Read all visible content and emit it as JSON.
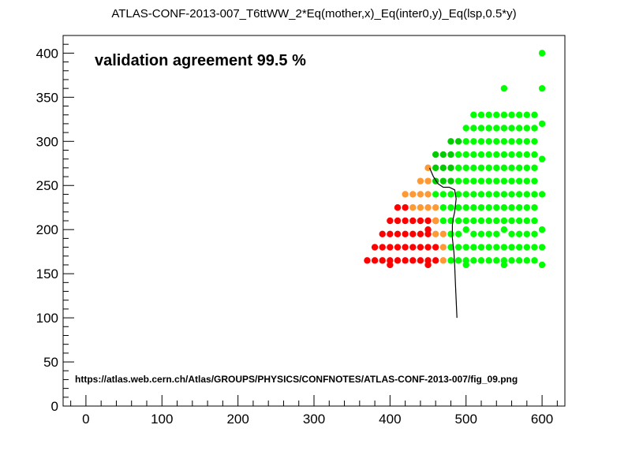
{
  "title": "ATLAS-CONF-2013-007_T6ttWW_2*Eq(mother,x)_Eq(inter0,y)_Eq(lsp,0.5*y)",
  "annotation": "validation agreement 99.5 %",
  "source_url": "https://atlas.web.cern.ch/Atlas/GROUPS/PHYSICS/CONFNOTES/ATLAS-CONF-2013-007/fig_09.png",
  "colors": {
    "excluded": "#ff0000",
    "disagree": "#ff9933",
    "allowed": "#00ff00",
    "allowed_dark": "#00cc00",
    "contour": "#000000"
  },
  "chart_data": {
    "type": "scatter",
    "title": "ATLAS-CONF-2013-007_T6ttWW_2*Eq(mother,x)_Eq(inter0,y)_Eq(lsp,0.5*y)",
    "xlabel": "",
    "ylabel": "",
    "xlim": [
      -30,
      630
    ],
    "ylim": [
      0,
      420
    ],
    "x_ticks": [
      0,
      100,
      200,
      300,
      400,
      500,
      600
    ],
    "y_ticks": [
      0,
      50,
      100,
      150,
      200,
      250,
      300,
      350,
      400
    ],
    "grid": false,
    "series": [
      {
        "color": "#ff0000",
        "points": [
          [
            370,
            165
          ],
          [
            380,
            165
          ],
          [
            390,
            165
          ],
          [
            400,
            165
          ],
          [
            410,
            165
          ],
          [
            420,
            165
          ],
          [
            430,
            165
          ],
          [
            440,
            165
          ],
          [
            450,
            165
          ],
          [
            460,
            165
          ],
          [
            400,
            160
          ],
          [
            450,
            160
          ],
          [
            380,
            180
          ],
          [
            390,
            180
          ],
          [
            400,
            180
          ],
          [
            410,
            180
          ],
          [
            420,
            180
          ],
          [
            430,
            180
          ],
          [
            440,
            180
          ],
          [
            450,
            180
          ],
          [
            460,
            180
          ],
          [
            390,
            195
          ],
          [
            400,
            195
          ],
          [
            410,
            195
          ],
          [
            420,
            195
          ],
          [
            430,
            195
          ],
          [
            440,
            195
          ],
          [
            450,
            195
          ],
          [
            400,
            210
          ],
          [
            410,
            210
          ],
          [
            420,
            210
          ],
          [
            430,
            210
          ],
          [
            440,
            210
          ],
          [
            450,
            210
          ],
          [
            460,
            210
          ],
          [
            410,
            225
          ],
          [
            420,
            225
          ],
          [
            450,
            200
          ]
        ]
      },
      {
        "color": "#ff9933",
        "points": [
          [
            470,
            165
          ],
          [
            470,
            180
          ],
          [
            460,
            195
          ],
          [
            470,
            195
          ],
          [
            430,
            225
          ],
          [
            440,
            225
          ],
          [
            450,
            225
          ],
          [
            460,
            225
          ],
          [
            420,
            240
          ],
          [
            430,
            240
          ],
          [
            440,
            240
          ],
          [
            450,
            240
          ],
          [
            440,
            255
          ],
          [
            450,
            255
          ],
          [
            450,
            270
          ],
          [
            460,
            210
          ]
        ]
      },
      {
        "color": "#00ff00",
        "points": [
          [
            480,
            165
          ],
          [
            490,
            165
          ],
          [
            500,
            165
          ],
          [
            510,
            165
          ],
          [
            520,
            165
          ],
          [
            530,
            165
          ],
          [
            540,
            165
          ],
          [
            550,
            165
          ],
          [
            560,
            165
          ],
          [
            570,
            165
          ],
          [
            580,
            165
          ],
          [
            590,
            165
          ],
          [
            600,
            160
          ],
          [
            500,
            160
          ],
          [
            550,
            160
          ],
          [
            480,
            180
          ],
          [
            490,
            180
          ],
          [
            500,
            180
          ],
          [
            510,
            180
          ],
          [
            520,
            180
          ],
          [
            530,
            180
          ],
          [
            540,
            180
          ],
          [
            550,
            180
          ],
          [
            560,
            180
          ],
          [
            570,
            180
          ],
          [
            580,
            180
          ],
          [
            590,
            180
          ],
          [
            600,
            180
          ],
          [
            480,
            195
          ],
          [
            490,
            195
          ],
          [
            510,
            195
          ],
          [
            520,
            195
          ],
          [
            530,
            195
          ],
          [
            540,
            195
          ],
          [
            560,
            195
          ],
          [
            570,
            195
          ],
          [
            580,
            195
          ],
          [
            590,
            195
          ],
          [
            600,
            200
          ],
          [
            500,
            200
          ],
          [
            550,
            200
          ],
          [
            470,
            210
          ],
          [
            480,
            210
          ],
          [
            490,
            210
          ],
          [
            500,
            210
          ],
          [
            510,
            210
          ],
          [
            520,
            210
          ],
          [
            530,
            210
          ],
          [
            540,
            210
          ],
          [
            550,
            210
          ],
          [
            560,
            210
          ],
          [
            570,
            210
          ],
          [
            580,
            210
          ],
          [
            590,
            210
          ],
          [
            470,
            225
          ],
          [
            480,
            225
          ],
          [
            490,
            225
          ],
          [
            500,
            225
          ],
          [
            510,
            225
          ],
          [
            520,
            225
          ],
          [
            530,
            225
          ],
          [
            540,
            225
          ],
          [
            550,
            225
          ],
          [
            560,
            225
          ],
          [
            570,
            225
          ],
          [
            580,
            225
          ],
          [
            590,
            225
          ],
          [
            460,
            240
          ],
          [
            470,
            240
          ],
          [
            480,
            240
          ],
          [
            490,
            240
          ],
          [
            500,
            240
          ],
          [
            510,
            240
          ],
          [
            520,
            240
          ],
          [
            530,
            240
          ],
          [
            540,
            240
          ],
          [
            550,
            240
          ],
          [
            560,
            240
          ],
          [
            570,
            240
          ],
          [
            580,
            240
          ],
          [
            590,
            240
          ],
          [
            600,
            240
          ],
          [
            490,
            255
          ],
          [
            500,
            255
          ],
          [
            510,
            255
          ],
          [
            520,
            255
          ],
          [
            530,
            255
          ],
          [
            540,
            255
          ],
          [
            550,
            255
          ],
          [
            560,
            255
          ],
          [
            570,
            255
          ],
          [
            580,
            255
          ],
          [
            590,
            255
          ],
          [
            490,
            270
          ],
          [
            500,
            270
          ],
          [
            510,
            270
          ],
          [
            520,
            270
          ],
          [
            530,
            270
          ],
          [
            540,
            270
          ],
          [
            550,
            270
          ],
          [
            560,
            270
          ],
          [
            570,
            270
          ],
          [
            580,
            270
          ],
          [
            590,
            270
          ],
          [
            490,
            285
          ],
          [
            500,
            285
          ],
          [
            510,
            285
          ],
          [
            520,
            285
          ],
          [
            530,
            285
          ],
          [
            540,
            285
          ],
          [
            550,
            285
          ],
          [
            560,
            285
          ],
          [
            570,
            285
          ],
          [
            580,
            285
          ],
          [
            590,
            285
          ],
          [
            600,
            280
          ],
          [
            500,
            300
          ],
          [
            510,
            300
          ],
          [
            520,
            300
          ],
          [
            530,
            300
          ],
          [
            540,
            300
          ],
          [
            550,
            300
          ],
          [
            560,
            300
          ],
          [
            570,
            300
          ],
          [
            580,
            300
          ],
          [
            590,
            300
          ],
          [
            500,
            315
          ],
          [
            510,
            315
          ],
          [
            520,
            315
          ],
          [
            530,
            315
          ],
          [
            540,
            315
          ],
          [
            550,
            315
          ],
          [
            560,
            315
          ],
          [
            570,
            315
          ],
          [
            580,
            315
          ],
          [
            590,
            315
          ],
          [
            600,
            320
          ],
          [
            510,
            330
          ],
          [
            520,
            330
          ],
          [
            530,
            330
          ],
          [
            540,
            330
          ],
          [
            550,
            330
          ],
          [
            560,
            330
          ],
          [
            570,
            330
          ],
          [
            580,
            330
          ],
          [
            590,
            330
          ],
          [
            550,
            360
          ],
          [
            600,
            360
          ],
          [
            600,
            400
          ]
        ]
      },
      {
        "color": "#00cc00",
        "points": [
          [
            460,
            255
          ],
          [
            470,
            255
          ],
          [
            480,
            255
          ],
          [
            460,
            270
          ],
          [
            470,
            270
          ],
          [
            480,
            270
          ],
          [
            460,
            285
          ],
          [
            470,
            285
          ],
          [
            480,
            285
          ],
          [
            480,
            300
          ],
          [
            490,
            300
          ]
        ]
      }
    ],
    "contour": [
      [
        488,
        100
      ],
      [
        487,
        120
      ],
      [
        486,
        140
      ],
      [
        485,
        160
      ],
      [
        484,
        175
      ],
      [
        482,
        190
      ],
      [
        482,
        205
      ],
      [
        483,
        212
      ],
      [
        485,
        220
      ],
      [
        487,
        235
      ],
      [
        485,
        245
      ],
      [
        478,
        248
      ],
      [
        470,
        248
      ],
      [
        463,
        252
      ],
      [
        457,
        260
      ],
      [
        452,
        270
      ]
    ]
  }
}
